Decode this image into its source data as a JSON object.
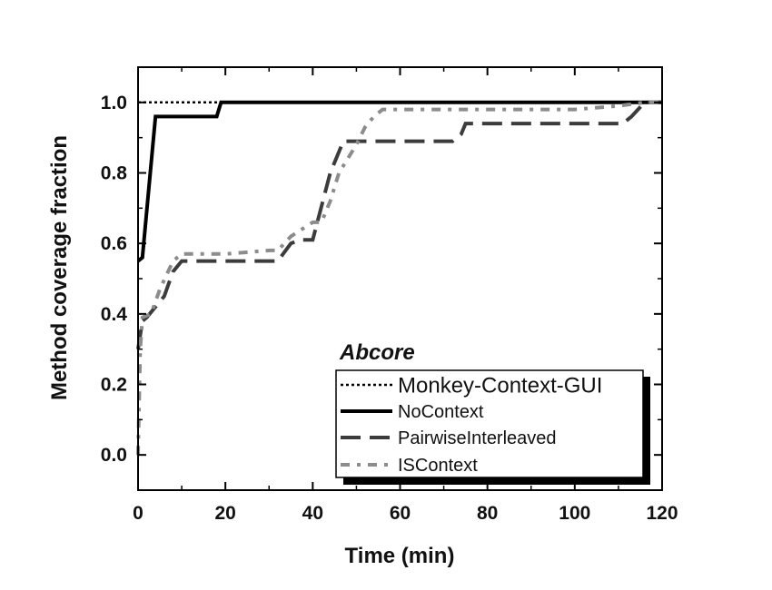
{
  "chart_data": {
    "type": "line",
    "xlabel": "Time (min)",
    "ylabel": "Method coverage fraction",
    "xlim": [
      0,
      120
    ],
    "ylim": [
      -0.1,
      1.1
    ],
    "xticks": [
      "0",
      "20",
      "40",
      "60",
      "80",
      "100",
      "120"
    ],
    "yticks": [
      "0.0",
      "0.2",
      "0.4",
      "0.6",
      "0.8",
      "1.0"
    ],
    "legend_title": "Abcore",
    "legend_position": "bottom-right",
    "grid": false,
    "series": [
      {
        "name": "Monkey-Context-GUI",
        "style": "dotted",
        "color": "#000000",
        "x": [
          0,
          120
        ],
        "y": [
          1.0,
          1.0
        ]
      },
      {
        "name": "NoContext",
        "style": "solid",
        "color": "#000000",
        "x": [
          0,
          1,
          4,
          18,
          19,
          20,
          120
        ],
        "y": [
          0.55,
          0.56,
          0.96,
          0.96,
          1.0,
          1.0,
          1.0
        ]
      },
      {
        "name": "PairwiseInterleaved",
        "style": "dashed",
        "color": "#3c3c3c",
        "x": [
          0,
          1,
          2,
          6,
          8,
          10,
          32,
          35,
          37,
          40,
          44,
          47,
          48,
          56,
          72,
          74,
          75,
          80,
          100,
          111,
          113,
          116,
          120
        ],
        "y": [
          0.3,
          0.38,
          0.39,
          0.45,
          0.52,
          0.55,
          0.55,
          0.6,
          0.61,
          0.61,
          0.8,
          0.89,
          0.89,
          0.89,
          0.89,
          0.91,
          0.94,
          0.94,
          0.94,
          0.94,
          0.96,
          1.0,
          1.0
        ]
      },
      {
        "name": "ISContext",
        "style": "dashdot",
        "color": "#8c8c8c",
        "x": [
          0,
          0.5,
          1,
          3,
          5,
          8,
          10,
          20,
          30,
          32,
          35,
          40,
          42,
          44,
          46,
          50,
          52,
          54,
          56,
          60,
          80,
          100,
          110,
          116,
          120
        ],
        "y": [
          0.0,
          0.3,
          0.39,
          0.4,
          0.47,
          0.55,
          0.57,
          0.57,
          0.58,
          0.58,
          0.62,
          0.66,
          0.66,
          0.72,
          0.8,
          0.88,
          0.93,
          0.96,
          0.98,
          0.98,
          0.98,
          0.98,
          0.99,
          1.0,
          1.0
        ]
      }
    ]
  }
}
